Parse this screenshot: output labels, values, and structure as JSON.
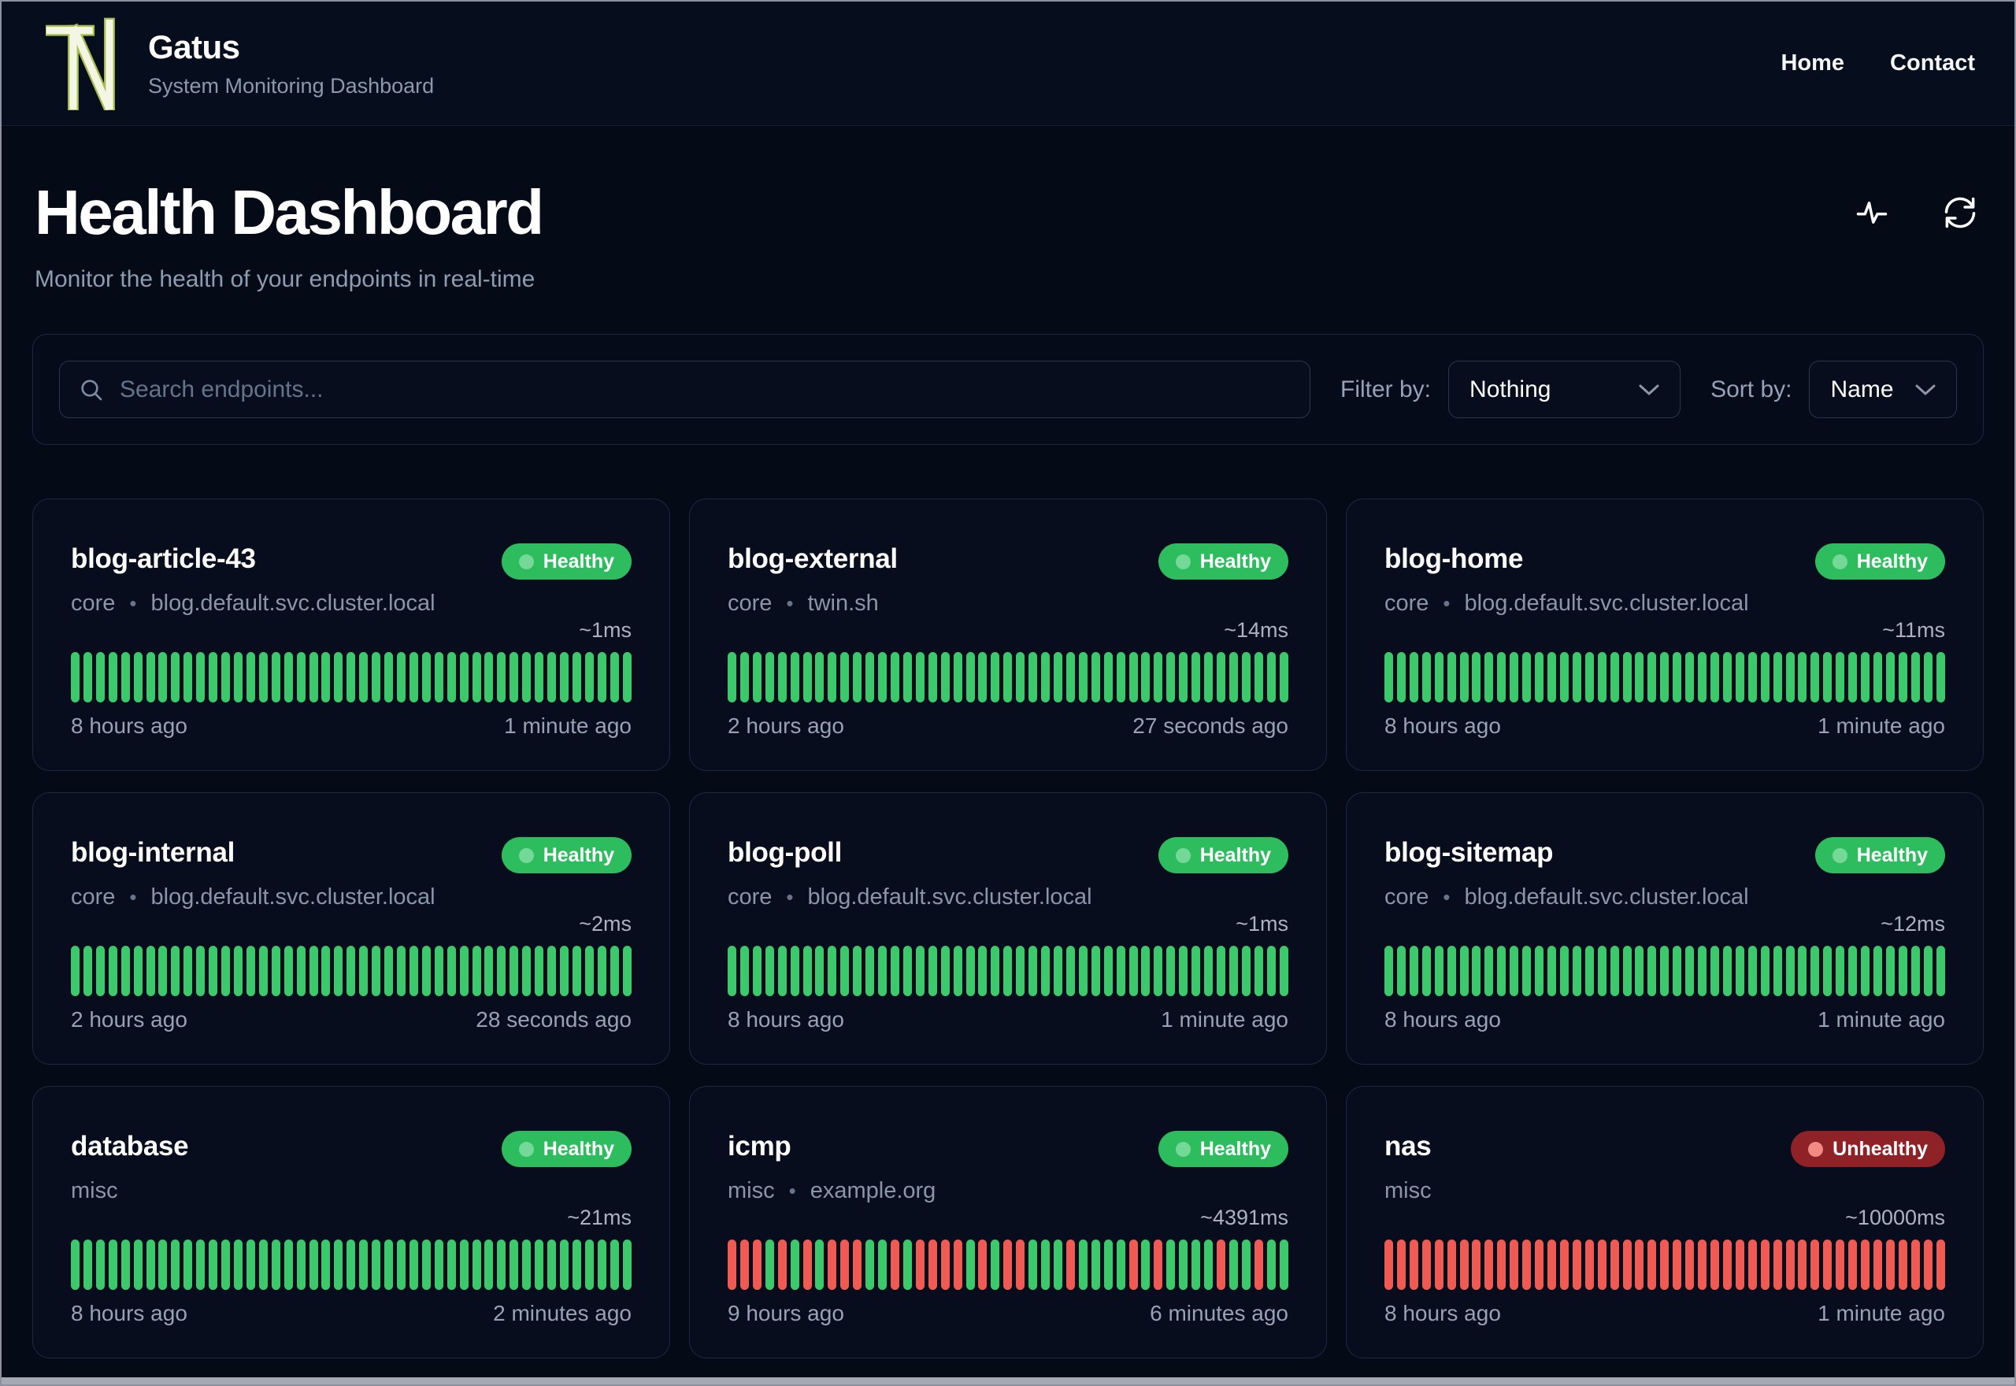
{
  "header": {
    "title": "Gatus",
    "subtitle": "System Monitoring Dashboard",
    "nav": [
      {
        "label": "Home"
      },
      {
        "label": "Contact"
      }
    ]
  },
  "page": {
    "title": "Health Dashboard",
    "subtitle": "Monitor the health of your endpoints in real-time"
  },
  "toolbar": {
    "search_placeholder": "Search endpoints...",
    "filter_label": "Filter by:",
    "filter_value": "Nothing",
    "sort_label": "Sort by:",
    "sort_value": "Name"
  },
  "colors": {
    "background": "#050a17",
    "card_background": "#070d1c",
    "healthy_badge": "#2ebd5e",
    "unhealthy_badge": "#8e2227",
    "bar_success": "#3bc96b",
    "bar_failure": "#ef5a52",
    "muted_text": "#8a96a8"
  },
  "cards": [
    {
      "name": "blog-article-43",
      "group": "core",
      "host": "blog.default.svc.cluster.local",
      "status": "Healthy",
      "latency": "~1ms",
      "from": "8 hours ago",
      "to": "1 minute ago",
      "bars": "GGGGGGGGGGGGGGGGGGGGGGGGGGGGGGGGGGGGGGGGGGGGG"
    },
    {
      "name": "blog-external",
      "group": "core",
      "host": "twin.sh",
      "status": "Healthy",
      "latency": "~14ms",
      "from": "2 hours ago",
      "to": "27 seconds ago",
      "bars": "GGGGGGGGGGGGGGGGGGGGGGGGGGGGGGGGGGGGGGGGGGGGG"
    },
    {
      "name": "blog-home",
      "group": "core",
      "host": "blog.default.svc.cluster.local",
      "status": "Healthy",
      "latency": "~11ms",
      "from": "8 hours ago",
      "to": "1 minute ago",
      "bars": "GGGGGGGGGGGGGGGGGGGGGGGGGGGGGGGGGGGGGGGGGGGGG"
    },
    {
      "name": "blog-internal",
      "group": "core",
      "host": "blog.default.svc.cluster.local",
      "status": "Healthy",
      "latency": "~2ms",
      "from": "2 hours ago",
      "to": "28 seconds ago",
      "bars": "GGGGGGGGGGGGGGGGGGGGGGGGGGGGGGGGGGGGGGGGGGGGG"
    },
    {
      "name": "blog-poll",
      "group": "core",
      "host": "blog.default.svc.cluster.local",
      "status": "Healthy",
      "latency": "~1ms",
      "from": "8 hours ago",
      "to": "1 minute ago",
      "bars": "GGGGGGGGGGGGGGGGGGGGGGGGGGGGGGGGGGGGGGGGGGGGG"
    },
    {
      "name": "blog-sitemap",
      "group": "core",
      "host": "blog.default.svc.cluster.local",
      "status": "Healthy",
      "latency": "~12ms",
      "from": "8 hours ago",
      "to": "1 minute ago",
      "bars": "GGGGGGGGGGGGGGGGGGGGGGGGGGGGGGGGGGGGGGGGGGGGG"
    },
    {
      "name": "database",
      "group": "misc",
      "host": "",
      "status": "Healthy",
      "latency": "~21ms",
      "from": "8 hours ago",
      "to": "2 minutes ago",
      "bars": "GGGGGGGGGGGGGGGGGGGGGGGGGGGGGGGGGGGGGGGGGGGGG"
    },
    {
      "name": "icmp",
      "group": "misc",
      "host": "example.org",
      "status": "Healthy",
      "latency": "~4391ms",
      "from": "9 hours ago",
      "to": "6 minutes ago",
      "bars": "RRRGRGRGRRRGGRGRRRRGRGRRGGGRGGGGRGRGGGGRGGRGG"
    },
    {
      "name": "nas",
      "group": "misc",
      "host": "",
      "status": "Unhealthy",
      "latency": "~10000ms",
      "from": "8 hours ago",
      "to": "1 minute ago",
      "bars": "RRRRRRRRRRRRRRRRRRRRRRRRRRRRRRRRRRRRRRRRRRRRR"
    }
  ]
}
